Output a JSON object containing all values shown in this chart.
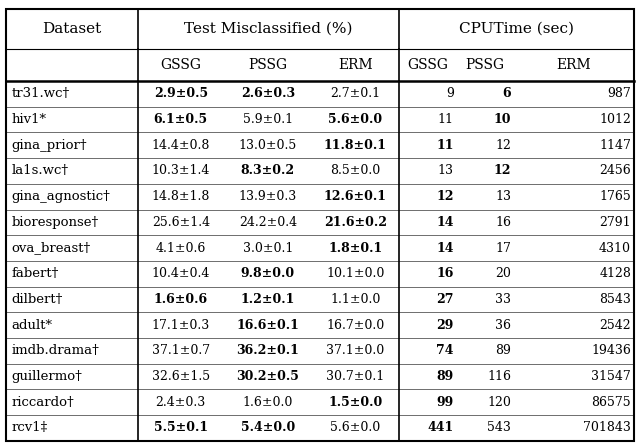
{
  "datasets": [
    "tr31.wc†",
    "hiv1*",
    "gina_prior†",
    "la1s.wc†",
    "gina_agnostic†",
    "bioresponse†",
    "ova_breast†",
    "fabert†",
    "dilbert†",
    "adult*",
    "imdb.drama†",
    "guillermo†",
    "riccardo†",
    "rcv1‡"
  ],
  "misclass_gssg": [
    "2.9±0.5",
    "6.1±0.5",
    "14.4±0.8",
    "10.3±1.4",
    "14.8±1.8",
    "25.6±1.4",
    "4.1±0.6",
    "10.4±0.4",
    "1.6±0.6",
    "17.1±0.3",
    "37.1±0.7",
    "32.6±1.5",
    "2.4±0.3",
    "5.5±0.1"
  ],
  "misclass_pssg": [
    "2.6±0.3",
    "5.9±0.1",
    "13.0±0.5",
    "8.3±0.2",
    "13.9±0.3",
    "24.2±0.4",
    "3.0±0.1",
    "9.8±0.0",
    "1.2±0.1",
    "16.6±0.1",
    "36.2±0.1",
    "30.2±0.5",
    "1.6±0.0",
    "5.4±0.0"
  ],
  "misclass_erm": [
    "2.7±0.1",
    "5.6±0.0",
    "11.8±0.1",
    "8.5±0.0",
    "12.6±0.1",
    "21.6±0.2",
    "1.8±0.1",
    "10.1±0.0",
    "1.1±0.0",
    "16.7±0.0",
    "37.1±0.0",
    "30.7±0.1",
    "1.5±0.0",
    "5.6±0.0"
  ],
  "cpu_gssg": [
    "9",
    "11",
    "11",
    "13",
    "12",
    "14",
    "14",
    "16",
    "27",
    "29",
    "74",
    "89",
    "99",
    "441"
  ],
  "cpu_pssg": [
    "6",
    "10",
    "12",
    "12",
    "13",
    "16",
    "17",
    "20",
    "33",
    "36",
    "89",
    "116",
    "120",
    "543"
  ],
  "cpu_erm": [
    "987",
    "1012",
    "1147",
    "2456",
    "1765",
    "2791",
    "4310",
    "4128",
    "8543",
    "2542",
    "19436",
    "31547",
    "86575",
    "701843"
  ],
  "bold_gssg_misclass": [
    true,
    true,
    false,
    false,
    false,
    false,
    false,
    false,
    true,
    false,
    false,
    false,
    false,
    true
  ],
  "bold_pssg_misclass": [
    true,
    false,
    false,
    true,
    false,
    false,
    false,
    true,
    true,
    true,
    true,
    true,
    false,
    true
  ],
  "bold_erm_misclass": [
    false,
    true,
    true,
    false,
    true,
    true,
    true,
    false,
    false,
    false,
    false,
    false,
    true,
    false
  ],
  "bold_gssg_cpu": [
    false,
    false,
    true,
    false,
    true,
    true,
    true,
    true,
    true,
    true,
    true,
    true,
    true,
    true
  ],
  "bold_pssg_cpu": [
    true,
    true,
    false,
    true,
    false,
    false,
    false,
    false,
    false,
    false,
    false,
    false,
    false,
    false
  ],
  "bold_erm_cpu": [
    false,
    false,
    false,
    false,
    false,
    false,
    false,
    false,
    false,
    false,
    false,
    false,
    false,
    false
  ]
}
